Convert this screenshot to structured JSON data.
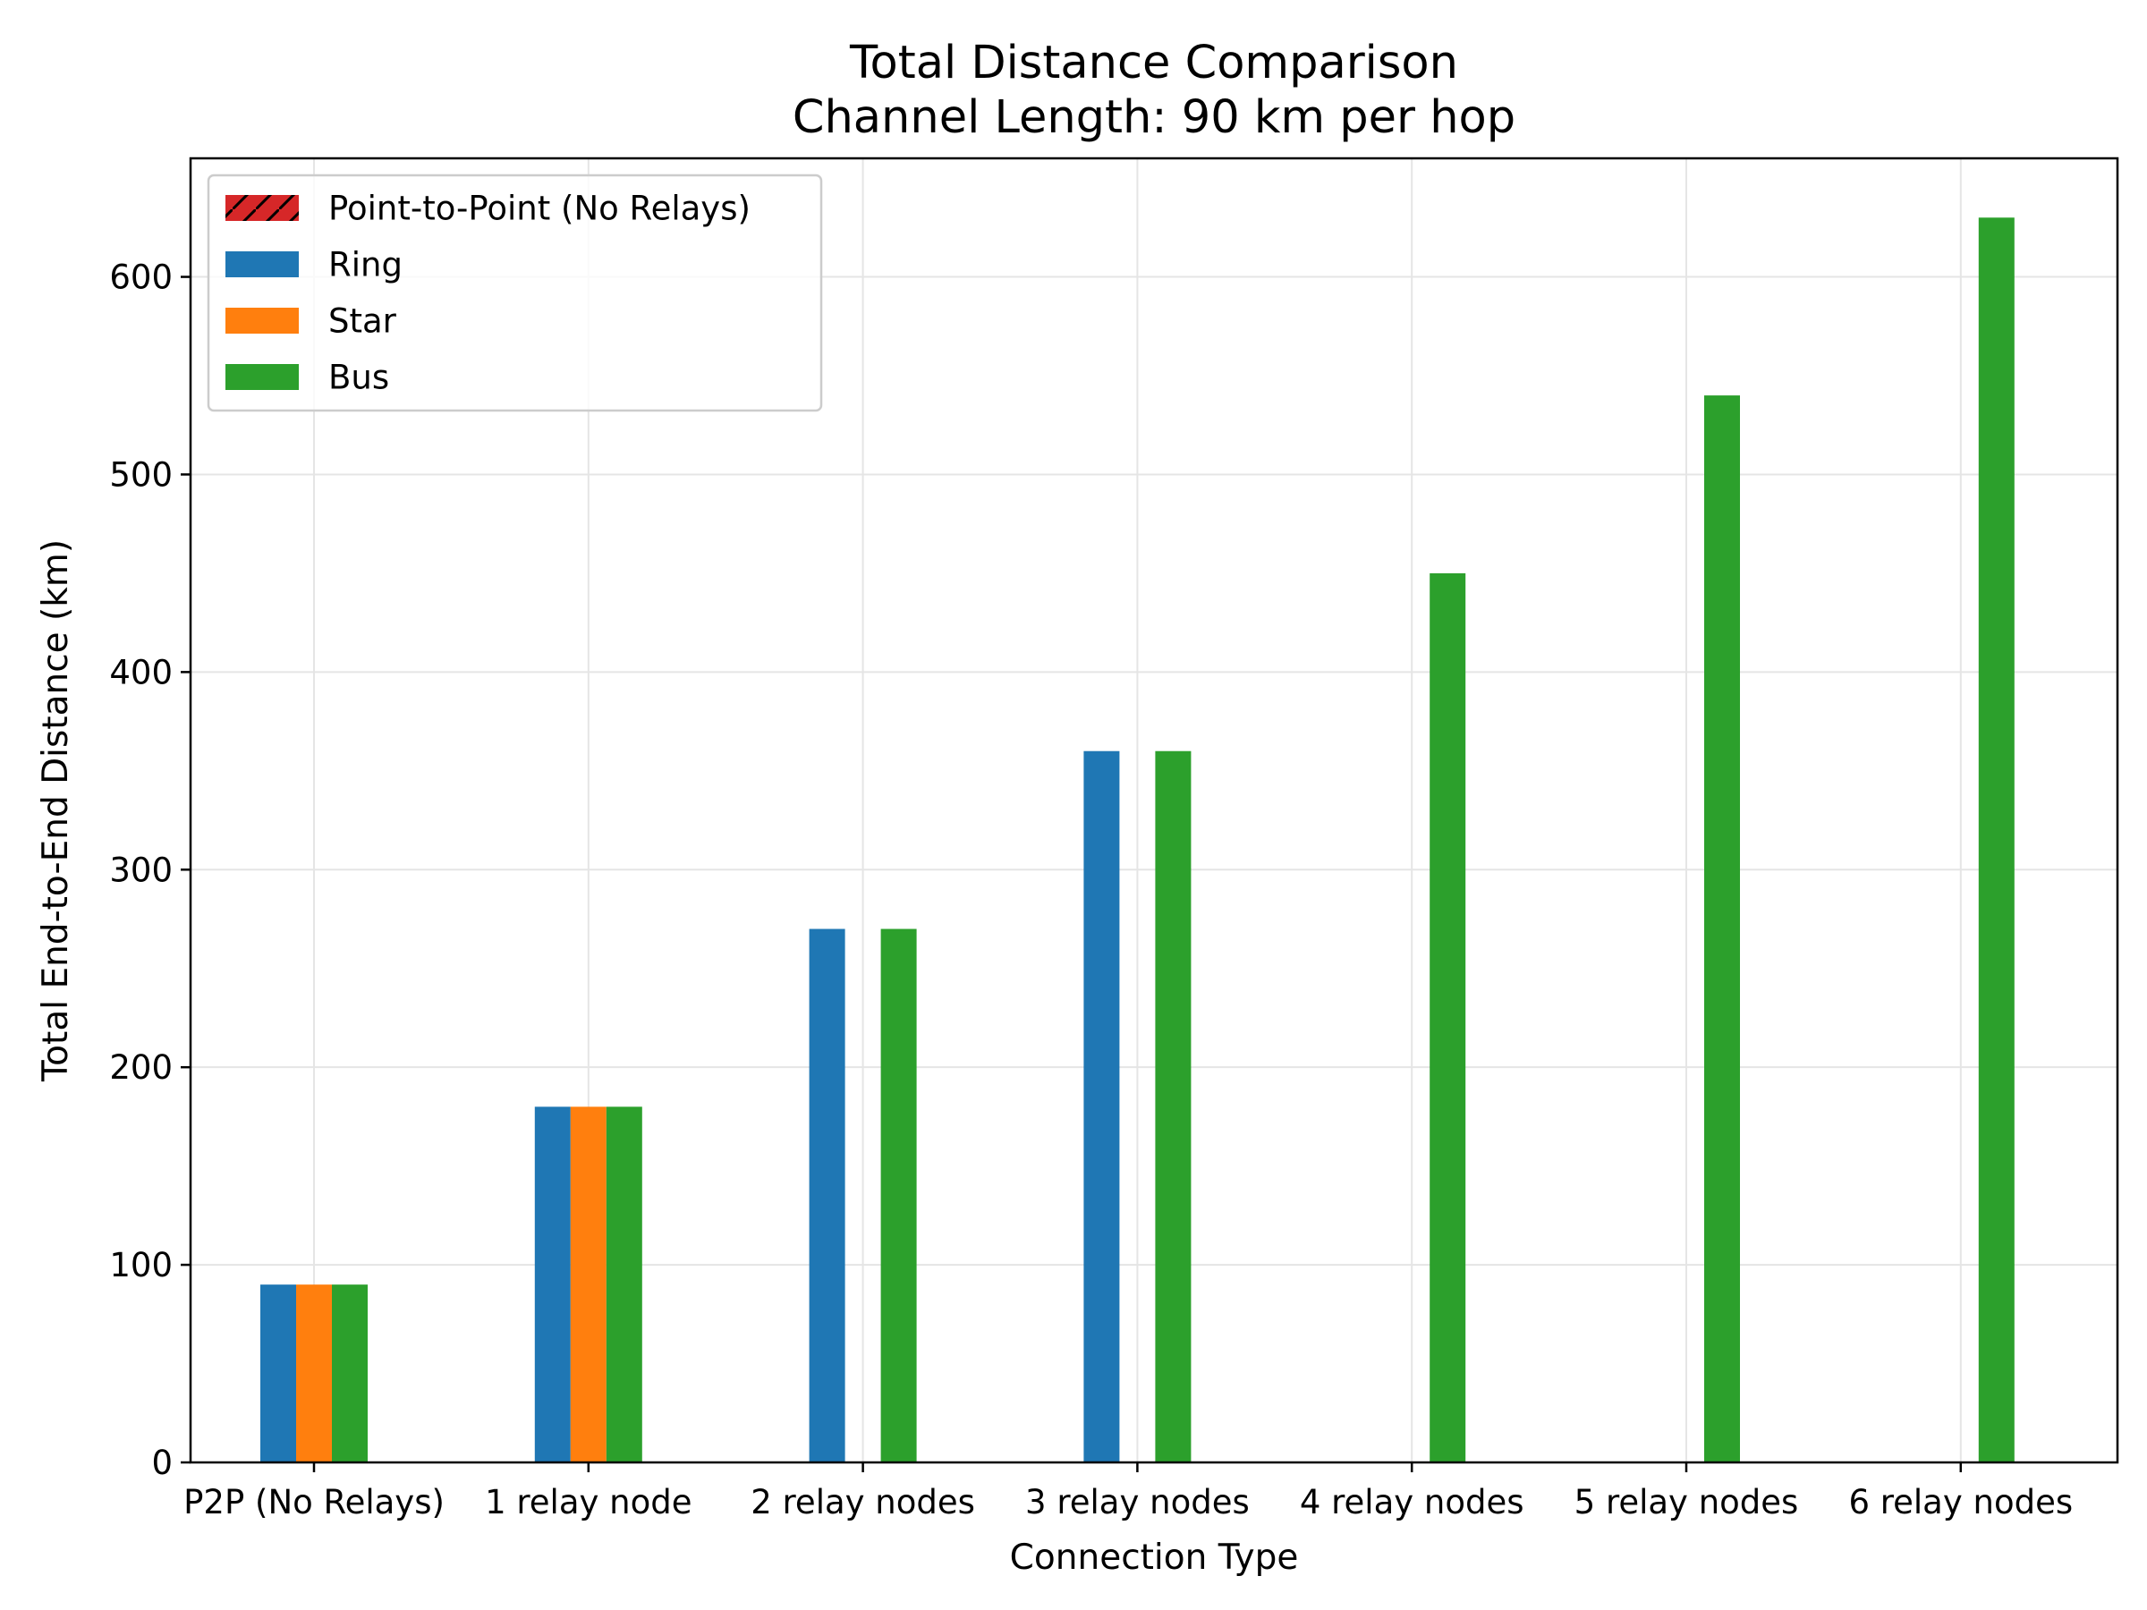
{
  "chart_data": {
    "type": "bar",
    "title": "Total Distance Comparison",
    "subtitle": "Channel Length: 90 km per hop",
    "xlabel": "Connection Type",
    "ylabel": "Total End-to-End Distance (km)",
    "categories": [
      "P2P (No Relays)",
      "1 relay node",
      "2 relay nodes",
      "3 relay nodes",
      "4 relay nodes",
      "5 relay nodes",
      "6 relay nodes"
    ],
    "ylim": [
      0,
      660
    ],
    "yticks": [
      0,
      100,
      200,
      300,
      400,
      500,
      600
    ],
    "grid": true,
    "legend_position": "upper-left",
    "legend": [
      {
        "name": "Point-to-Point (No Relays)",
        "color": "#d62728",
        "hatch": true
      },
      {
        "name": "Ring",
        "color": "#1f77b4"
      },
      {
        "name": "Star",
        "color": "#ff7f0e"
      },
      {
        "name": "Bus",
        "color": "#2ca02c"
      }
    ],
    "series": [
      {
        "name": "Ring",
        "color": "#1f77b4",
        "offset": -1,
        "values": [
          90,
          180,
          270,
          360,
          null,
          null,
          null
        ]
      },
      {
        "name": "Star",
        "color": "#ff7f0e",
        "offset": 0,
        "values": [
          90,
          180,
          null,
          null,
          null,
          null,
          null
        ]
      },
      {
        "name": "Bus",
        "color": "#2ca02c",
        "offset": 1,
        "values": [
          90,
          180,
          270,
          360,
          450,
          540,
          630
        ]
      }
    ]
  }
}
